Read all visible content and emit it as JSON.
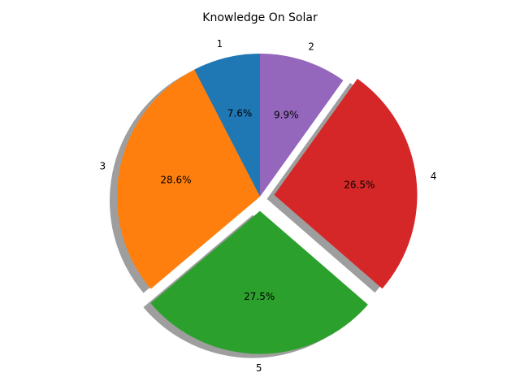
{
  "chart_data": {
    "type": "pie",
    "title": "Knowledge On Solar",
    "start_angle_deg": 90,
    "direction": "counterclockwise",
    "shadow": true,
    "slices": [
      {
        "label": "1",
        "value": 7.6,
        "percent_label": "7.6%",
        "color": "#1f77b4",
        "exploded": false
      },
      {
        "label": "3",
        "value": 28.6,
        "percent_label": "28.6%",
        "color": "#ff7f0e",
        "exploded": false
      },
      {
        "label": "5",
        "value": 27.5,
        "percent_label": "27.5%",
        "color": "#2ca02c",
        "exploded": true
      },
      {
        "label": "4",
        "value": 26.5,
        "percent_label": "26.5%",
        "color": "#d62728",
        "exploded": true
      },
      {
        "label": "2",
        "value": 9.9,
        "percent_label": "9.9%",
        "color": "#9467bd",
        "exploded": false
      }
    ]
  }
}
